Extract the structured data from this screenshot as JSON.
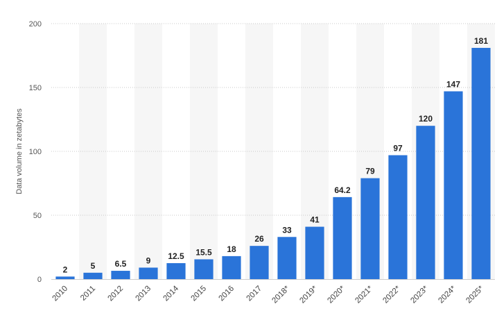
{
  "chart_data": {
    "type": "bar",
    "title": "",
    "xlabel": "",
    "ylabel": "Data volume in zetabytes",
    "ylim": [
      0,
      200
    ],
    "yticks": [
      0,
      50,
      100,
      150,
      200
    ],
    "grid": true,
    "categories": [
      "2010",
      "2011",
      "2012",
      "2013",
      "2014",
      "2015",
      "2016",
      "2017",
      "2018*",
      "2019*",
      "2020*",
      "2021*",
      "2022*",
      "2023*",
      "2024*",
      "2025*"
    ],
    "values": [
      2,
      5,
      6.5,
      9,
      12.5,
      15.5,
      18,
      26,
      33,
      41,
      64.2,
      79,
      97,
      120,
      147,
      181
    ],
    "data_labels": [
      "2",
      "5",
      "6.5",
      "9",
      "12.5",
      "15.5",
      "18",
      "26",
      "33",
      "41",
      "64.2",
      "79",
      "97",
      "120",
      "147",
      "181"
    ],
    "bar_color": "#2a74d9",
    "band_color": "#f6f6f6"
  }
}
